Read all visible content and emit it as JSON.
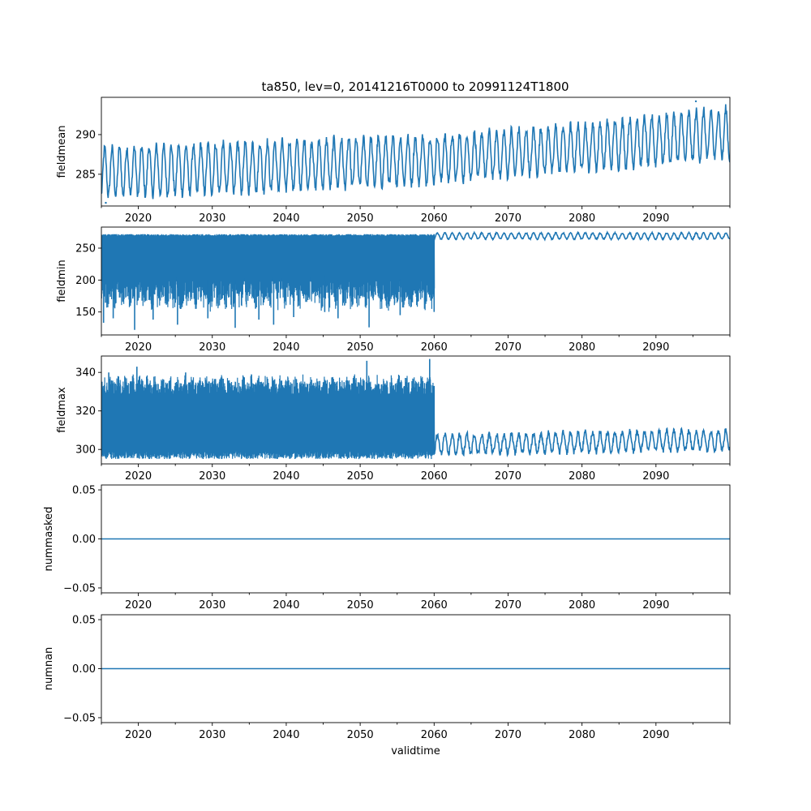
{
  "title": "ta850, lev=0, 20141216T0000 to 20991124T1800",
  "colors": {
    "line": "#1f77b4",
    "axis": "#000000",
    "background": "#ffffff"
  },
  "chart_data": [
    {
      "type": "line",
      "name": "fieldmean",
      "ylabel": "fieldmean",
      "xlabel": "",
      "xlim": [
        2015.0,
        2100.0
      ],
      "ylim": [
        281.0,
        294.7
      ],
      "x_ticks": [
        2020,
        2030,
        2040,
        2050,
        2060,
        2070,
        2080,
        2090
      ],
      "y_ticks": [
        285,
        290
      ],
      "annual_cycle": {
        "summer_max": [
          [
            2015,
            288.5
          ],
          [
            2040,
            289.4
          ],
          [
            2060,
            290.0
          ],
          [
            2080,
            291.5
          ],
          [
            2099,
            293.5
          ]
        ],
        "winter_min": [
          [
            2015,
            282.0
          ],
          [
            2040,
            282.8
          ],
          [
            2060,
            283.8
          ],
          [
            2080,
            285.3
          ],
          [
            2099,
            286.8
          ]
        ],
        "notable_points": [
          [
            2015.6,
            281.4
          ],
          [
            2095.4,
            294.2
          ]
        ]
      }
    },
    {
      "type": "line",
      "name": "fieldmin",
      "ylabel": "fieldmin",
      "xlabel": "",
      "xlim": [
        2015.0,
        2100.0
      ],
      "ylim": [
        114.0,
        283.0
      ],
      "x_ticks": [
        2020,
        2030,
        2040,
        2050,
        2060,
        2070,
        2080,
        2090
      ],
      "y_ticks": [
        150,
        200,
        250
      ],
      "segments": [
        {
          "x_range": [
            2015.0,
            2060.0
          ],
          "upper": 272,
          "typical_low": 180,
          "noisy": true,
          "deep_minima": [
            [
              2015.3,
              133
            ],
            [
              2016.6,
              140
            ],
            [
              2019.5,
              122
            ],
            [
              2022.0,
              138
            ],
            [
              2025.3,
              130
            ],
            [
              2029.4,
              140
            ],
            [
              2033.1,
              125
            ],
            [
              2036.3,
              138
            ],
            [
              2038.3,
              130
            ],
            [
              2041.0,
              142
            ],
            [
              2045.2,
              150
            ],
            [
              2047.0,
              140
            ],
            [
              2051.2,
              126
            ],
            [
              2055.4,
              145
            ]
          ]
        },
        {
          "x_range": [
            2060.0,
            2100.0
          ],
          "seasonal_high": 275,
          "seasonal_low": 263,
          "noisy": false
        }
      ]
    },
    {
      "type": "line",
      "name": "fieldmax",
      "ylabel": "fieldmax",
      "xlabel": "",
      "xlim": [
        2015.0,
        2100.0
      ],
      "ylim": [
        292.5,
        348.5
      ],
      "x_ticks": [
        2020,
        2030,
        2040,
        2050,
        2060,
        2070,
        2080,
        2090
      ],
      "y_ticks": [
        300,
        320,
        340
      ],
      "segments": [
        {
          "x_range": [
            2015.0,
            2060.0
          ],
          "typical_high": 333,
          "typical_low": 297,
          "noisy": true,
          "spikes": [
            [
              2016.0,
              340
            ],
            [
              2019.8,
              343
            ],
            [
              2026.4,
              340
            ],
            [
              2035.3,
              339
            ],
            [
              2050.9,
              346
            ],
            [
              2059.4,
              347
            ]
          ]
        },
        {
          "x_range": [
            2060.0,
            2100.0
          ],
          "seasonal_high": [
            [
              2060,
              309
            ],
            [
              2099,
              312
            ]
          ],
          "seasonal_low": [
            [
              2060,
              296
            ],
            [
              2099,
              298
            ]
          ],
          "noisy": false
        }
      ]
    },
    {
      "type": "line",
      "name": "nummasked",
      "ylabel": "nummasked",
      "xlabel": "",
      "xlim": [
        2015.0,
        2100.0
      ],
      "ylim": [
        -0.055,
        0.055
      ],
      "x_ticks": [
        2020,
        2030,
        2040,
        2050,
        2060,
        2070,
        2080,
        2090
      ],
      "y_ticks": [
        -0.05,
        0.0,
        0.05
      ],
      "y_tick_labels": [
        "−0.05",
        "0.00",
        "0.05"
      ],
      "constant_value": 0.0
    },
    {
      "type": "line",
      "name": "numnan",
      "ylabel": "numnan",
      "xlabel": "validtime",
      "xlim": [
        2015.0,
        2100.0
      ],
      "ylim": [
        -0.055,
        0.055
      ],
      "x_ticks": [
        2020,
        2030,
        2040,
        2050,
        2060,
        2070,
        2080,
        2090
      ],
      "y_ticks": [
        -0.05,
        0.0,
        0.05
      ],
      "y_tick_labels": [
        "−0.05",
        "0.00",
        "0.05"
      ],
      "constant_value": 0.0
    }
  ]
}
